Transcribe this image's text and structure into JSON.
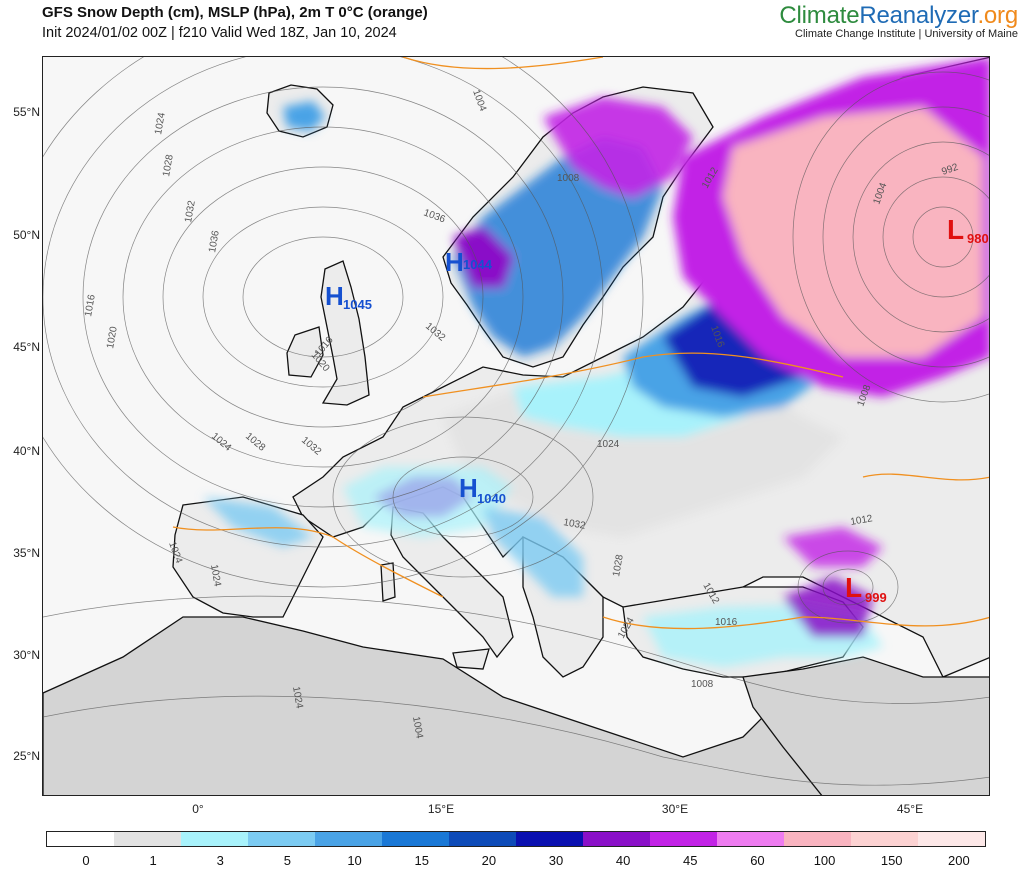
{
  "header": {
    "title": "GFS Snow Depth (cm), MSLP (hPa), 2m T 0°C (orange)",
    "subtitle": "Init 2024/01/02 00Z | f210 Valid Wed 18Z, Jan 10, 2024"
  },
  "brand": {
    "part1": "Climate",
    "part2": "Reanalyzer",
    "part3": ".org",
    "subtitle": "Climate Change Institute | University of Maine",
    "colors": {
      "climate": "#2e8b3e",
      "reanalyzer": "#1f6bb5",
      "org": "#f08a1c"
    }
  },
  "axes": {
    "lat_labels": [
      "55°N",
      "50°N",
      "45°N",
      "40°N",
      "35°N",
      "30°N",
      "25°N"
    ],
    "lon_labels": [
      "0°",
      "15°E",
      "30°E",
      "45°E"
    ]
  },
  "pressure_centers": [
    {
      "type": "H",
      "value": "1044",
      "color": "#1550d0"
    },
    {
      "type": "H",
      "value": "1045",
      "color": "#1550d0"
    },
    {
      "type": "H",
      "value": "1040",
      "color": "#1550d0"
    },
    {
      "type": "L",
      "value": "980",
      "color": "#e01010"
    },
    {
      "type": "L",
      "value": "999",
      "color": "#e01010"
    }
  ],
  "isobar_labels": [
    "1004",
    "1024",
    "1028",
    "1032",
    "1036",
    "1016",
    "1020",
    "1036",
    "1032",
    "1024",
    "1028",
    "1032",
    "1020",
    "1024",
    "1024",
    "1024",
    "1008",
    "1012",
    "1016",
    "1004",
    "992",
    "1008",
    "1012",
    "1024",
    "1016",
    "1012",
    "1032",
    "1028",
    "1016",
    "1024",
    "1004",
    "1008"
  ],
  "colorbar": {
    "labels": [
      "0",
      "1",
      "3",
      "5",
      "10",
      "15",
      "20",
      "30",
      "40",
      "45",
      "60",
      "100",
      "150",
      "200"
    ],
    "colors": [
      "#ffffff",
      "#e2e2e2",
      "#a8f2fb",
      "#7ccbf2",
      "#4aa3e6",
      "#1a78d6",
      "#0e4bb8",
      "#0a10b0",
      "#8a10c8",
      "#c223e6",
      "#ee7cf0",
      "#f9b4c0",
      "#fcd2d2",
      "#fde8e8"
    ]
  }
}
